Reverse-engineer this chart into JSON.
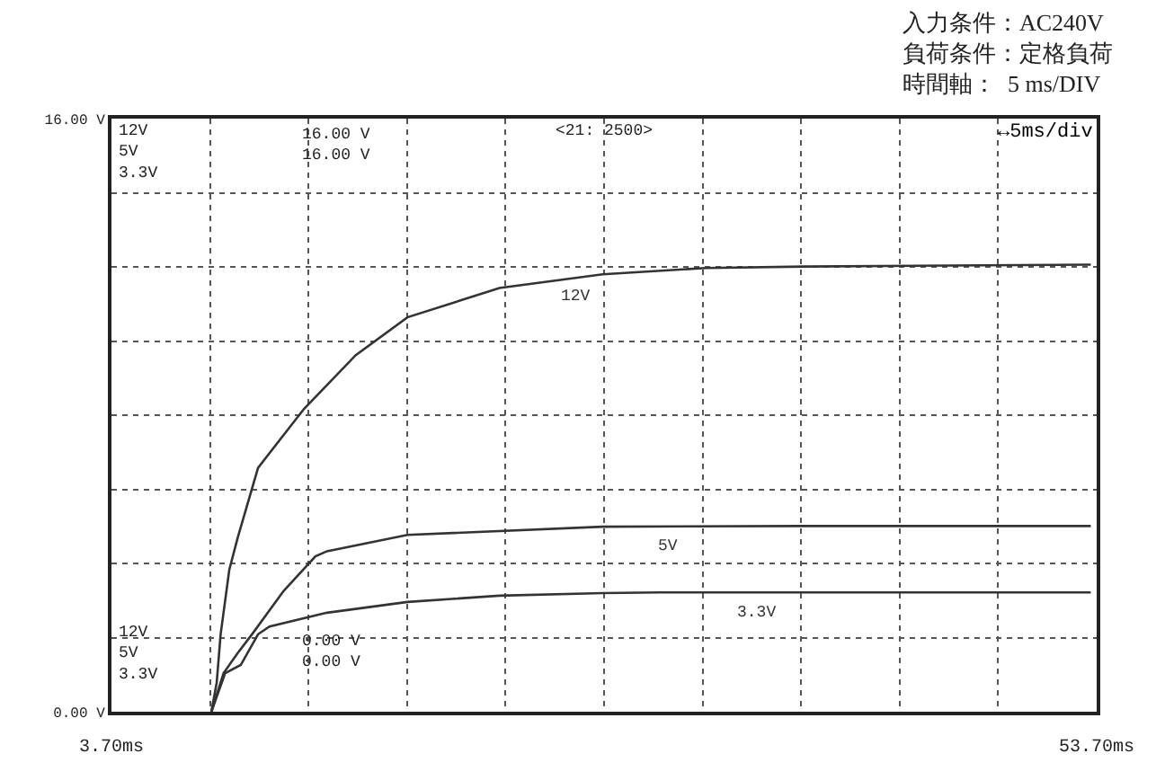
{
  "chart_data": {
    "type": "line",
    "xlabel": null,
    "x": [
      8.77,
      9.04,
      9.24,
      9.68,
      10.11,
      11.14,
      13.47,
      16.1,
      18.72,
      23.39,
      28.63,
      33.88,
      38.84,
      53.4
    ],
    "series": [
      {
        "color": "#333333",
        "values": [
          0,
          0.78,
          2.09,
          3.83,
          4.7,
          6.58,
          8.17,
          9.62,
          10.64,
          11.43,
          11.8,
          11.97,
          12.01,
          12.06
        ]
      },
      {
        "color": "#333333",
        "x": [
          8.77,
          9.39,
          10.09,
          10.85,
          12.44,
          14.05,
          14.64,
          18.72,
          28.63,
          38.5,
          53.4
        ],
        "values": [
          0,
          1.04,
          1.57,
          2.1,
          3.26,
          4.19,
          4.33,
          4.77,
          4.99,
          5.01,
          5.01
        ]
      },
      {
        "color": "#333333",
        "x": [
          8.77,
          9.47,
          10.26,
          11.14,
          11.72,
          14.64,
          18.72,
          23.39,
          28.63,
          31.52,
          53.4
        ],
        "values": [
          0,
          1.04,
          1.26,
          2.09,
          2.3,
          2.67,
          2.96,
          3.13,
          3.2,
          3.22,
          3.22
        ]
      }
    ],
    "xlim": [
      3.7,
      53.7
    ],
    "xticks": [
      {
        "value": 3.7,
        "label": "3.70ms"
      },
      {
        "value": 8.7,
        "label": null
      },
      {
        "value": 13.7,
        "label": null
      },
      {
        "value": 18.7,
        "label": null
      },
      {
        "value": 23.7,
        "label": null
      },
      {
        "value": 28.7,
        "label": null
      },
      {
        "value": 33.7,
        "label": null
      },
      {
        "value": 38.7,
        "label": null
      },
      {
        "value": 43.7,
        "label": null
      },
      {
        "value": 48.7,
        "label": null
      },
      {
        "value": 53.7,
        "label": "53.70ms"
      }
    ],
    "ylim": [
      0,
      16
    ],
    "yticks": [
      {
        "value": 0,
        "label": "0.00 V"
      },
      {
        "value": 2,
        "label": null
      },
      {
        "value": 4,
        "label": null
      },
      {
        "value": 6,
        "label": null
      },
      {
        "value": 8,
        "label": null
      },
      {
        "value": 10,
        "label": null
      },
      {
        "value": 12,
        "label": null
      },
      {
        "value": 14,
        "label": null
      },
      {
        "value": 16,
        "label": "16.00 V"
      }
    ],
    "grid": true,
    "marker": "none",
    "line_style": "solid",
    "annotations": [
      "入力条件：AC240V",
      "負荷条件：定格負荷",
      "時間軸：  5 ms/DIV",
      "12V\n5V\n3.3V",
      "12V\n5V\n3.3V",
      "<21: 2500>",
      "↔5ms/div",
      "16.00 V\n16.00 V",
      "0.00 V\n0.00 V",
      {
        "text": "12V",
        "x": 27.3,
        "y": 11.75
      },
      {
        "text": "5V",
        "x": 31.9,
        "y": 5.0
      },
      {
        "text": "3.3V",
        "x": 36.5,
        "y": 3.22
      }
    ]
  }
}
